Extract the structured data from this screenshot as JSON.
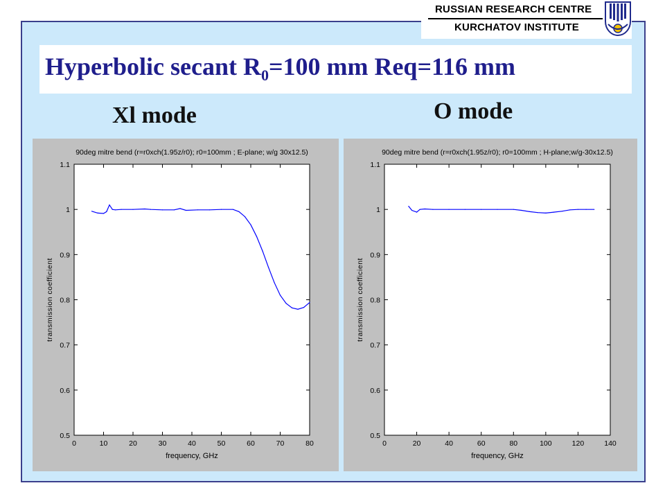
{
  "header": {
    "org_line1": "RUSSIAN RESEARCH CENTRE",
    "org_line2": "KURCHATOV INSTITUTE"
  },
  "slide": {
    "title_prefix": "Hyperbolic secant  R",
    "title_subscript": "0",
    "title_suffix": "=100 mm Req=116 mm",
    "left_mode": "Xl mode",
    "right_mode": "O mode"
  },
  "colors": {
    "frame_border": "#3b3f8c",
    "background": "#cce9fb",
    "title": "#1f1e8c",
    "curve": "#0000ff"
  },
  "chart_data": [
    {
      "type": "line",
      "title": "90deg mitre bend (r=r0xch(1.95z/r0); r0=100mm ; E-plane; w/g 30x12.5)",
      "xlabel": "frequency, GHz",
      "ylabel": "transmission coefficient",
      "xlim": [
        0,
        80
      ],
      "ylim": [
        0.5,
        1.1
      ],
      "xticks": [
        "0",
        "10",
        "20",
        "30",
        "40",
        "50",
        "60",
        "70",
        "80"
      ],
      "yticks": [
        "0.5",
        "0.6",
        "0.7",
        "0.8",
        "0.9",
        "1",
        "1.1"
      ],
      "grid": false,
      "series": [
        {
          "x": [
            6,
            8,
            10,
            11,
            12,
            13,
            14,
            16,
            20,
            24,
            26,
            30,
            34,
            36,
            38,
            42,
            46,
            50,
            54,
            56,
            58,
            60,
            62,
            64,
            66,
            68,
            70,
            72,
            74,
            76,
            78,
            80
          ],
          "y": [
            0.996,
            0.992,
            0.991,
            0.995,
            1.01,
            1.0,
            0.999,
            1.0,
            1.0,
            1.001,
            1.0,
            0.999,
            0.999,
            1.002,
            0.998,
            0.999,
            0.999,
            1.0,
            1.0,
            0.995,
            0.984,
            0.966,
            0.94,
            0.908,
            0.872,
            0.838,
            0.81,
            0.792,
            0.782,
            0.779,
            0.783,
            0.794
          ]
        }
      ]
    },
    {
      "type": "line",
      "title": "90deg mitre bend (r=r0xch(1.95z/r0); r0=100mm ; H-plane;w/g-30x12.5)",
      "xlabel": "frequency, GHz",
      "ylabel": "transmission coefficient",
      "xlim": [
        0,
        140
      ],
      "ylim": [
        0.5,
        1.1
      ],
      "xticks": [
        "0",
        "20",
        "40",
        "60",
        "80",
        "100",
        "120",
        "140"
      ],
      "yticks": [
        "0.5",
        "0.6",
        "0.7",
        "0.8",
        "0.9",
        "1",
        "1.1"
      ],
      "grid": false,
      "series": [
        {
          "x": [
            15,
            17,
            20,
            22,
            25,
            30,
            40,
            50,
            60,
            70,
            80,
            85,
            90,
            95,
            100,
            105,
            110,
            115,
            120,
            125,
            130
          ],
          "y": [
            1.007,
            0.998,
            0.994,
            1.0,
            1.001,
            1.0,
            1.0,
            1.0,
            1.0,
            1.0,
            1.0,
            0.998,
            0.995,
            0.993,
            0.992,
            0.994,
            0.996,
            0.999,
            1.0,
            1.0,
            1.0
          ]
        }
      ]
    }
  ]
}
